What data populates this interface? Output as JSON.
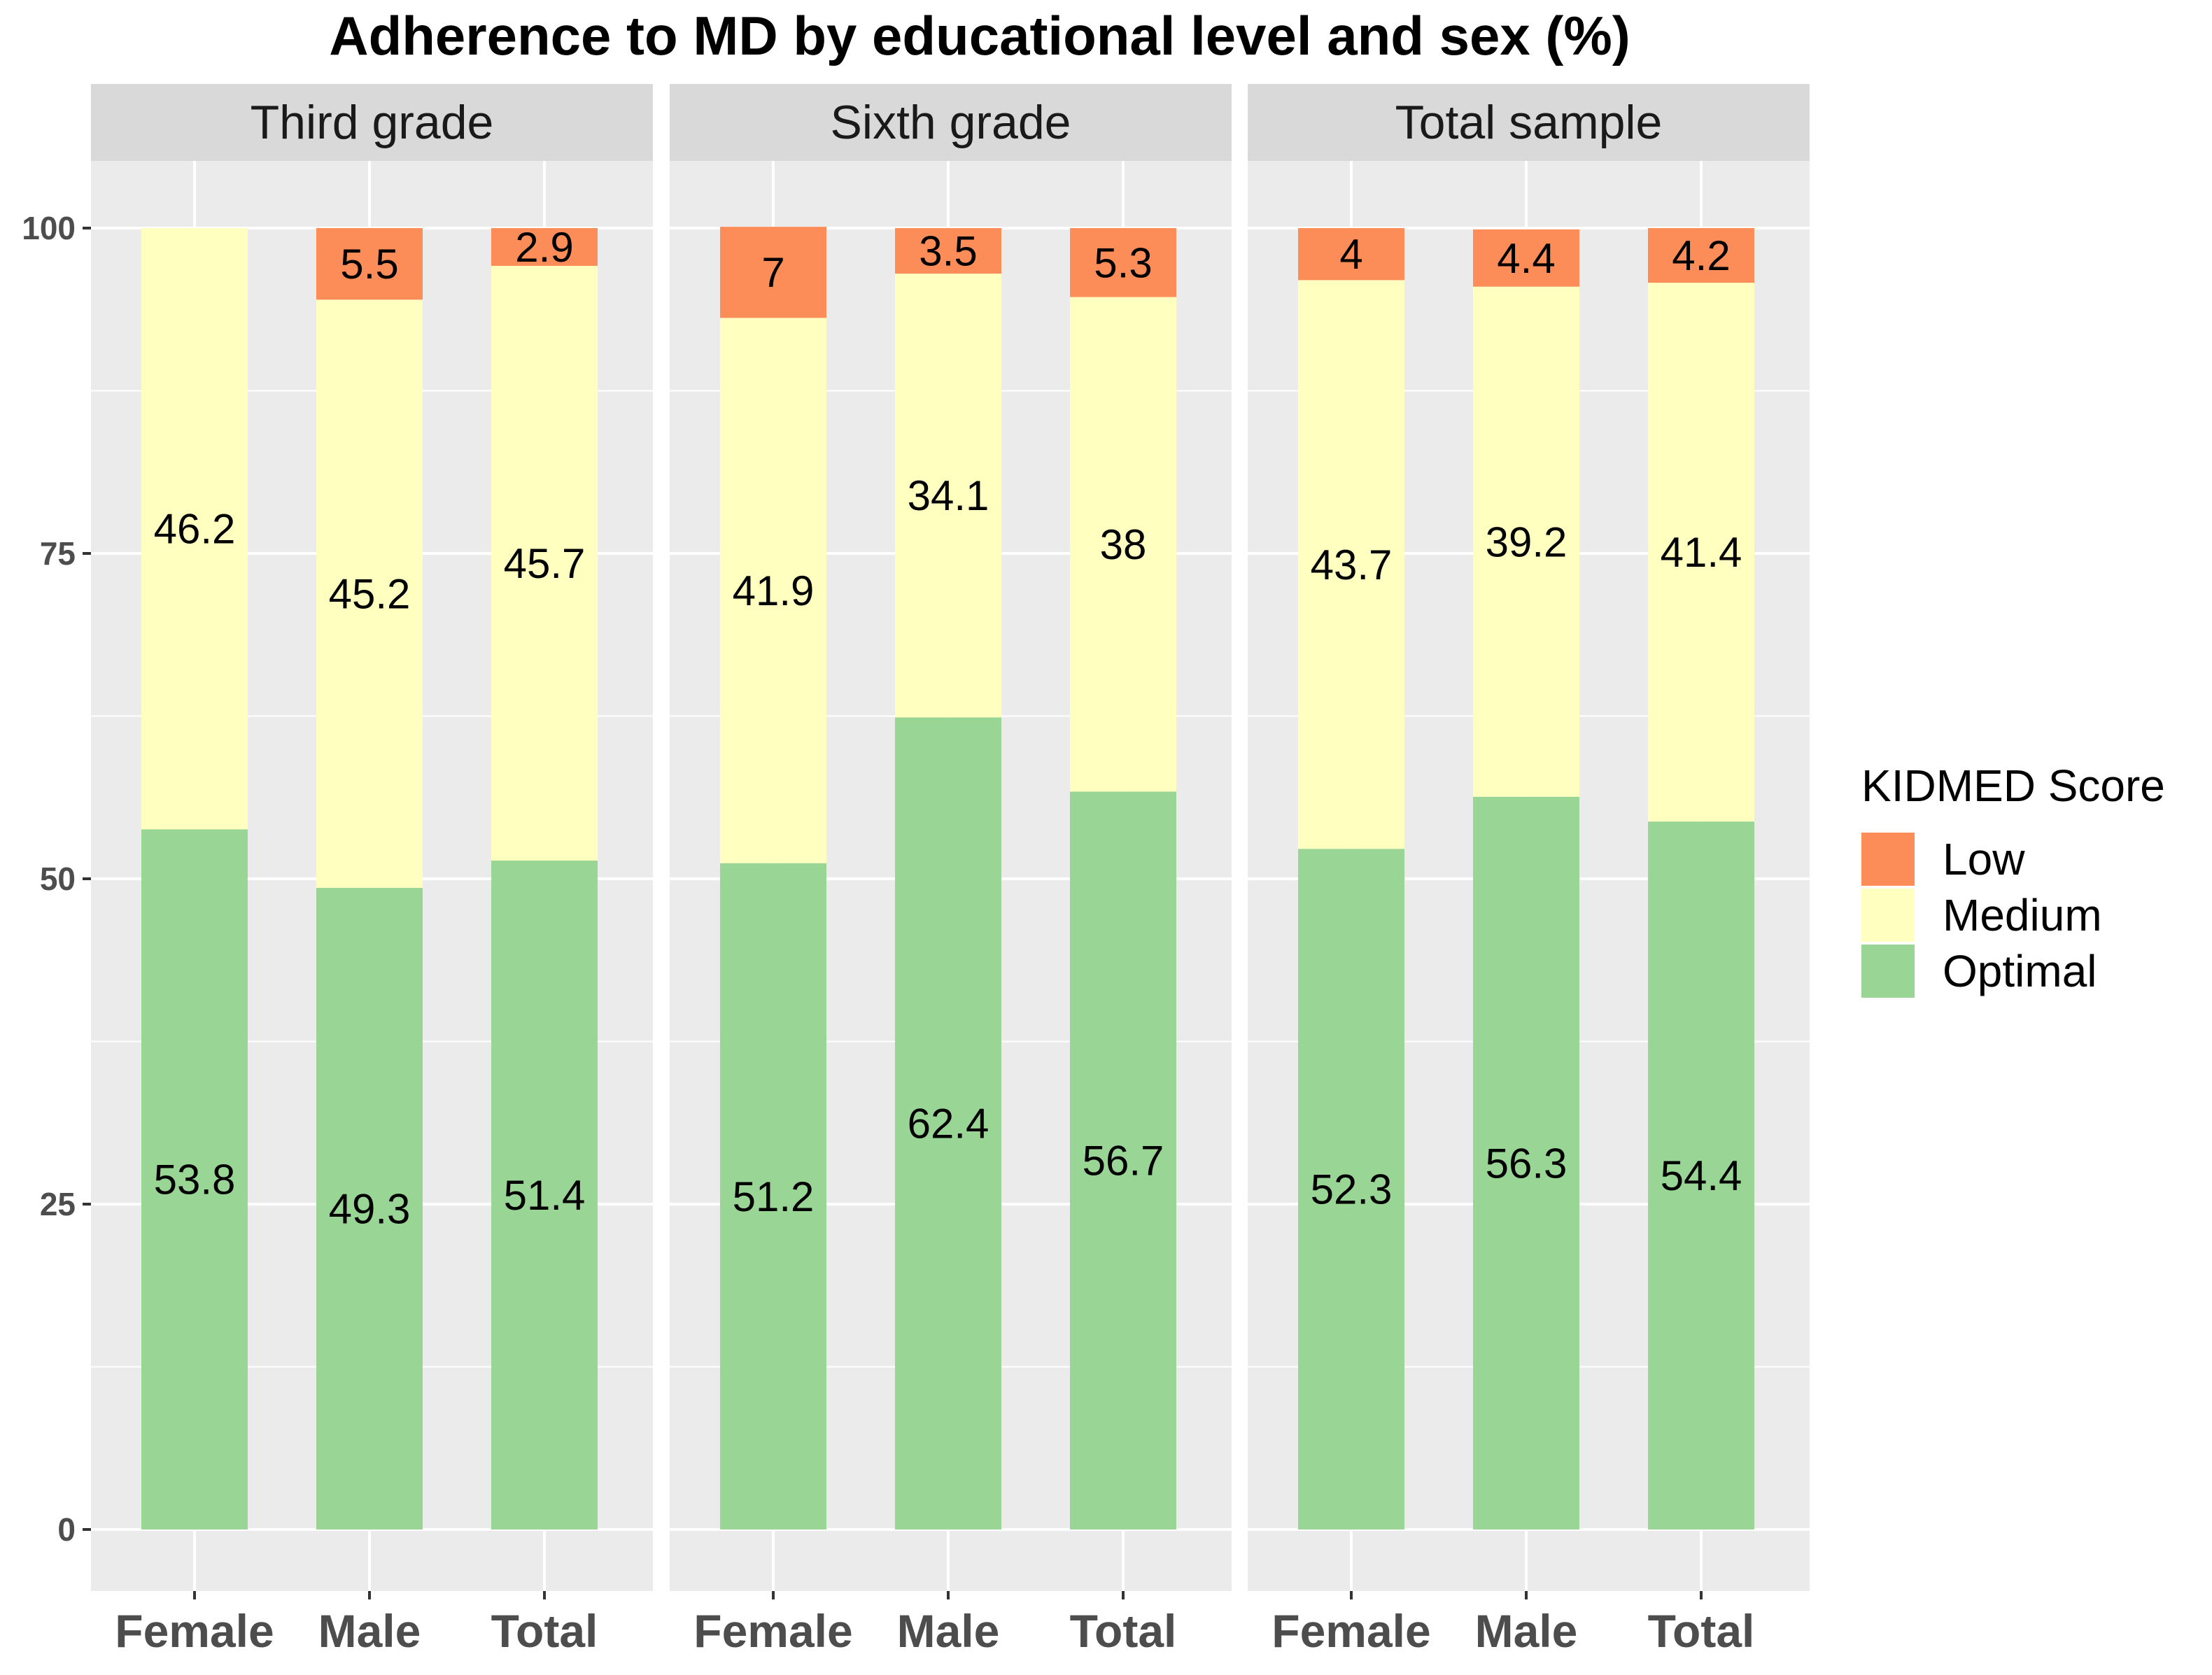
{
  "chart_data": {
    "type": "bar",
    "stacked": true,
    "title": "Adherence to MD by educational level and sex (%)",
    "xlabel": "",
    "ylabel": "",
    "ylim": [
      0,
      105
    ],
    "yticks": [
      0,
      25,
      50,
      75,
      100
    ],
    "grid": true,
    "legend": {
      "title": "KIDMED Score",
      "position": "right",
      "entries": [
        {
          "name": "Low",
          "color": "#FC8D59"
        },
        {
          "name": "Medium",
          "color": "#FFFFBF"
        },
        {
          "name": "Optimal",
          "color": "#99D594"
        }
      ]
    },
    "categories": [
      "Female",
      "Male",
      "Total"
    ],
    "panels": [
      {
        "name": "Third grade",
        "series": [
          {
            "name": "Optimal",
            "values": [
              53.8,
              49.3,
              51.4
            ],
            "labels": [
              "53.8",
              "49.3",
              "51.4"
            ]
          },
          {
            "name": "Medium",
            "values": [
              46.2,
              45.2,
              45.7
            ],
            "labels": [
              "46.2",
              "45.2",
              "45.7"
            ]
          },
          {
            "name": "Low",
            "values": [
              0,
              5.5,
              2.9
            ],
            "labels": [
              "",
              "5.5",
              "2.9"
            ]
          }
        ]
      },
      {
        "name": "Sixth grade",
        "series": [
          {
            "name": "Optimal",
            "values": [
              51.2,
              62.4,
              56.7
            ],
            "labels": [
              "51.2",
              "62.4",
              "56.7"
            ]
          },
          {
            "name": "Medium",
            "values": [
              41.9,
              34.1,
              38
            ],
            "labels": [
              "41.9",
              "34.1",
              "38"
            ]
          },
          {
            "name": "Low",
            "values": [
              7,
              3.5,
              5.3
            ],
            "labels": [
              "7",
              "3.5",
              "5.3"
            ]
          }
        ]
      },
      {
        "name": "Total sample",
        "series": [
          {
            "name": "Optimal",
            "values": [
              52.3,
              56.3,
              54.4
            ],
            "labels": [
              "52.3",
              "56.3",
              "54.4"
            ]
          },
          {
            "name": "Medium",
            "values": [
              43.7,
              39.2,
              41.4
            ],
            "labels": [
              "43.7",
              "39.2",
              "41.4"
            ]
          },
          {
            "name": "Low",
            "values": [
              4,
              4.4,
              4.2
            ],
            "labels": [
              "4",
              "4.4",
              "4.2"
            ]
          }
        ]
      }
    ],
    "colors": {
      "panel_background": "#EBEBEB",
      "strip_background": "#D9D9D9",
      "grid": "#FFFFFF"
    }
  }
}
